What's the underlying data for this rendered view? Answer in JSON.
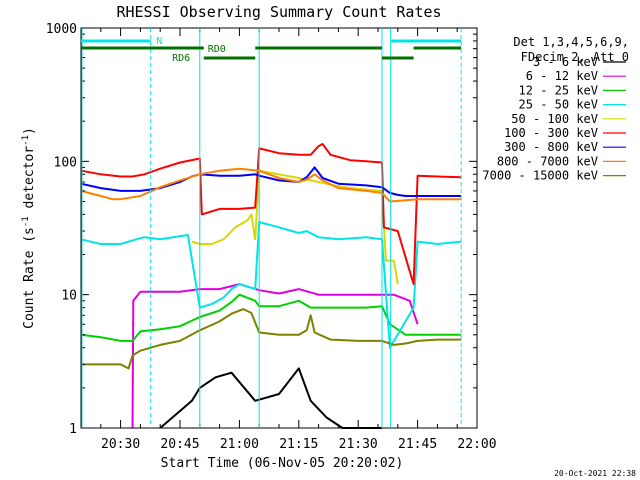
{
  "chart_data": {
    "type": "line",
    "title": "RHESSI Observing Summary Count Rates",
    "xlabel": "Start Time (06-Nov-05 20:20:02)",
    "ylabel": "Count Rate (s-1 detector-1)",
    "ylabel_parts": [
      "Count Rate (s",
      "-1",
      " detector",
      "-1",
      ")"
    ],
    "yscale": "log",
    "ylim": [
      1,
      1000
    ],
    "xlim_minutes_after_2020": [
      0,
      100
    ],
    "y_ticks": [
      "1",
      "10",
      "100",
      "1000"
    ],
    "x_ticks": [
      {
        "label": "20:30",
        "t": 10
      },
      {
        "label": "20:45",
        "t": 25
      },
      {
        "label": "21:00",
        "t": 40
      },
      {
        "label": "21:15",
        "t": 55
      },
      {
        "label": "21:30",
        "t": 70
      },
      {
        "label": "21:45",
        "t": 85
      },
      {
        "label": "22:00",
        "t": 100
      }
    ],
    "legend_header": [
      "Det 1,3,4,5,6,9,",
      "FDecim 2, Att 0"
    ],
    "legend_position": "right",
    "timestamp": "20-Oct-2021 22:38",
    "markers": {
      "n_label": "N",
      "rd0_label": "RD0",
      "rd6_label": "RD6",
      "night_segments": [
        [
          0,
          17.6
        ],
        [
          78.2,
          96
        ]
      ],
      "rd0_segments": [
        [
          0,
          31
        ],
        [
          44,
          76
        ],
        [
          84,
          96
        ]
      ],
      "rd6_segments": [
        [
          31,
          44
        ],
        [
          76,
          84
        ]
      ],
      "vlines_solid": [
        0,
        30,
        45,
        76,
        78.2
      ],
      "vlines_dashed": [
        17.6,
        96
      ]
    },
    "series": [
      {
        "name": "3 - 6 keV",
        "color": "#000000",
        "points": [
          [
            20,
            1
          ],
          [
            28,
            1.6
          ],
          [
            30,
            2
          ],
          [
            34,
            2.4
          ],
          [
            38,
            2.6
          ],
          [
            44,
            1.6
          ],
          [
            50,
            1.8
          ],
          [
            55,
            2.8
          ],
          [
            58,
            1.6
          ],
          [
            62,
            1.2
          ],
          [
            66,
            1
          ],
          [
            76,
            1
          ]
        ]
      },
      {
        "name": "6 - 12 keV",
        "color": "#e000e0",
        "points": [
          [
            13,
            1
          ],
          [
            13.2,
            9
          ],
          [
            15,
            10.5
          ],
          [
            20,
            10.5
          ],
          [
            25,
            10.5
          ],
          [
            30,
            11
          ],
          [
            35,
            11
          ],
          [
            40,
            12
          ],
          [
            45,
            10.8
          ],
          [
            50,
            10.2
          ],
          [
            55,
            11
          ],
          [
            60,
            10
          ],
          [
            65,
            10
          ],
          [
            70,
            10
          ],
          [
            76,
            10
          ],
          [
            79,
            10
          ],
          [
            83,
            9
          ],
          [
            85,
            6
          ]
        ]
      },
      {
        "name": "12 - 25 keV",
        "color": "#00d000",
        "points": [
          [
            0,
            5
          ],
          [
            5,
            4.8
          ],
          [
            10,
            4.5
          ],
          [
            12,
            4.5
          ],
          [
            13,
            4.5
          ],
          [
            15,
            5.3
          ],
          [
            20,
            5.5
          ],
          [
            25,
            5.8
          ],
          [
            30,
            6.8
          ],
          [
            35,
            7.6
          ],
          [
            38,
            8.8
          ],
          [
            40,
            10
          ],
          [
            44,
            9
          ],
          [
            45,
            8.2
          ],
          [
            50,
            8.2
          ],
          [
            55,
            9
          ],
          [
            58,
            8
          ],
          [
            65,
            8
          ],
          [
            72,
            8
          ],
          [
            76,
            8.2
          ],
          [
            78,
            6
          ],
          [
            82,
            5
          ],
          [
            85,
            5
          ],
          [
            90,
            5
          ],
          [
            96,
            5
          ]
        ]
      },
      {
        "name": "25 - 50 keV",
        "color": "#00e5e5",
        "points": [
          [
            0,
            26
          ],
          [
            5,
            24
          ],
          [
            10,
            24
          ],
          [
            14,
            26
          ],
          [
            16,
            27
          ],
          [
            20,
            26
          ],
          [
            27,
            28
          ],
          [
            30,
            8
          ],
          [
            33,
            8.5
          ],
          [
            36,
            9.5
          ],
          [
            38,
            11
          ],
          [
            40,
            12
          ],
          [
            44,
            11
          ],
          [
            45,
            35
          ],
          [
            50,
            32
          ],
          [
            55,
            29
          ],
          [
            57,
            30
          ],
          [
            60,
            27
          ],
          [
            65,
            26
          ],
          [
            72,
            27
          ],
          [
            76,
            26
          ],
          [
            78,
            4
          ],
          [
            84,
            8
          ],
          [
            85,
            25
          ],
          [
            90,
            24
          ],
          [
            96,
            25
          ]
        ]
      },
      {
        "name": "50 - 100 keV",
        "color": "#d8d800",
        "points": [
          [
            28,
            25
          ],
          [
            30,
            24
          ],
          [
            33,
            24
          ],
          [
            36,
            26
          ],
          [
            39,
            32
          ],
          [
            42,
            36
          ],
          [
            43,
            40
          ],
          [
            44,
            26
          ],
          [
            45,
            85
          ],
          [
            55,
            75
          ],
          [
            60,
            70
          ],
          [
            65,
            65
          ],
          [
            70,
            62
          ],
          [
            76,
            60
          ],
          [
            77,
            18
          ],
          [
            79,
            18
          ],
          [
            80,
            12
          ]
        ]
      },
      {
        "name": "100 - 300 keV",
        "color": "#ff0000",
        "points": [
          [
            0,
            85
          ],
          [
            5,
            80
          ],
          [
            10,
            77
          ],
          [
            13,
            77
          ],
          [
            16,
            80
          ],
          [
            20,
            88
          ],
          [
            25,
            98
          ],
          [
            30,
            105
          ],
          [
            30.5,
            40
          ],
          [
            35,
            44
          ],
          [
            40,
            44
          ],
          [
            44,
            45
          ],
          [
            45,
            125
          ],
          [
            50,
            115
          ],
          [
            55,
            112
          ],
          [
            58,
            112
          ],
          [
            60,
            130
          ],
          [
            61,
            135
          ],
          [
            63,
            112
          ],
          [
            68,
            102
          ],
          [
            72,
            100
          ],
          [
            76,
            98
          ],
          [
            76.5,
            32
          ],
          [
            80,
            30
          ],
          [
            83,
            15
          ],
          [
            84,
            12
          ],
          [
            85,
            78
          ],
          [
            90,
            77
          ],
          [
            96,
            76
          ]
        ]
      },
      {
        "name": "300 - 800 keV",
        "color": "#0000ff",
        "points": [
          [
            0,
            68
          ],
          [
            5,
            63
          ],
          [
            10,
            60
          ],
          [
            15,
            60
          ],
          [
            20,
            63
          ],
          [
            25,
            70
          ],
          [
            28,
            77
          ],
          [
            30,
            80
          ],
          [
            35,
            78
          ],
          [
            40,
            78
          ],
          [
            44,
            80
          ],
          [
            45,
            78
          ],
          [
            50,
            72
          ],
          [
            55,
            70
          ],
          [
            57,
            76
          ],
          [
            59,
            90
          ],
          [
            61,
            75
          ],
          [
            65,
            68
          ],
          [
            72,
            66
          ],
          [
            76,
            64
          ],
          [
            78,
            58
          ],
          [
            80,
            56
          ],
          [
            82,
            55
          ],
          [
            85,
            55
          ],
          [
            90,
            55
          ],
          [
            96,
            55
          ]
        ]
      },
      {
        "name": "800 - 7000 keV",
        "color": "#ff8000",
        "points": [
          [
            0,
            60
          ],
          [
            5,
            55
          ],
          [
            8,
            52
          ],
          [
            10,
            52
          ],
          [
            15,
            55
          ],
          [
            20,
            64
          ],
          [
            25,
            72
          ],
          [
            30,
            80
          ],
          [
            35,
            85
          ],
          [
            40,
            88
          ],
          [
            45,
            85
          ],
          [
            50,
            75
          ],
          [
            55,
            70
          ],
          [
            57,
            73
          ],
          [
            59,
            80
          ],
          [
            61,
            72
          ],
          [
            65,
            63
          ],
          [
            72,
            60
          ],
          [
            76,
            58
          ],
          [
            78,
            50
          ],
          [
            82,
            51
          ],
          [
            85,
            52
          ],
          [
            90,
            52
          ],
          [
            96,
            52
          ]
        ]
      },
      {
        "name": "7000 - 15000 keV",
        "color": "#808000",
        "points": [
          [
            0,
            3
          ],
          [
            5,
            3
          ],
          [
            10,
            3
          ],
          [
            12,
            2.8
          ],
          [
            13,
            3.5
          ],
          [
            15,
            3.8
          ],
          [
            20,
            4.2
          ],
          [
            25,
            4.5
          ],
          [
            30,
            5.4
          ],
          [
            35,
            6.3
          ],
          [
            38,
            7.2
          ],
          [
            41,
            7.8
          ],
          [
            43,
            7.3
          ],
          [
            45,
            5.2
          ],
          [
            50,
            5
          ],
          [
            55,
            5
          ],
          [
            57,
            5.4
          ],
          [
            58,
            7
          ],
          [
            59,
            5.2
          ],
          [
            63,
            4.6
          ],
          [
            70,
            4.5
          ],
          [
            76,
            4.5
          ],
          [
            79,
            4.2
          ],
          [
            82,
            4.3
          ],
          [
            85,
            4.5
          ],
          [
            90,
            4.6
          ],
          [
            96,
            4.6
          ]
        ]
      }
    ]
  }
}
